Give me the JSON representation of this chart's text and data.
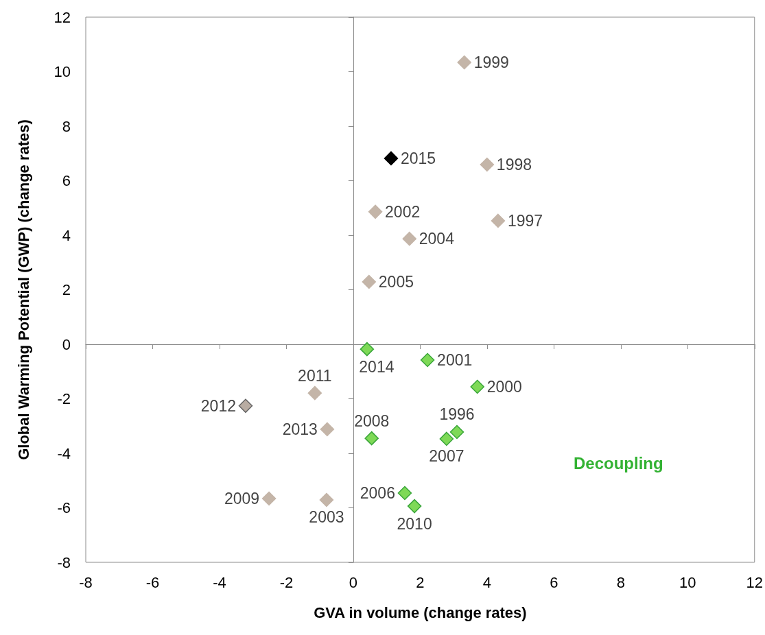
{
  "chart_data": {
    "type": "scatter",
    "xlabel": "GVA in volume (change rates)",
    "ylabel": "Global Warming Potential (GWP) (change rates)",
    "xlim": [
      -8,
      12
    ],
    "xticks": [
      -8,
      -6,
      -4,
      -2,
      0,
      2,
      4,
      6,
      8,
      10,
      12
    ],
    "ylim": [
      -8,
      12
    ],
    "yticks": [
      -8,
      -6,
      -4,
      -2,
      0,
      2,
      4,
      6,
      8,
      10,
      12
    ],
    "marker": "diamond",
    "series": [
      {
        "color": "#c4b5a8",
        "x": [
          3.32,
          4.0,
          0.66,
          4.33,
          1.68,
          0.47,
          -1.15,
          -0.78,
          -2.52,
          -0.8
        ],
        "values": [
          10.34,
          6.59,
          4.86,
          4.53,
          3.87,
          2.29,
          -1.79,
          -3.12,
          -5.66,
          -5.71
        ]
      },
      {
        "color": "#7ed957",
        "x": [
          0.41,
          2.22,
          3.71,
          0.55,
          3.1,
          2.79,
          1.54,
          1.83
        ],
        "values": [
          -0.18,
          -0.58,
          -1.56,
          -3.45,
          -3.22,
          -3.47,
          -5.46,
          -5.94
        ]
      },
      {
        "color": "#000000",
        "x": [
          1.13
        ],
        "values": [
          6.82
        ]
      },
      {
        "color": "#b8aca2",
        "x": [
          -3.22
        ],
        "values": [
          -2.26
        ]
      }
    ],
    "annotations": [
      {
        "text": "1999",
        "x": 3.32,
        "y": 10.34
      },
      {
        "text": "1998",
        "x": 4.0,
        "y": 6.59
      },
      {
        "text": "2002",
        "x": 0.66,
        "y": 4.86
      },
      {
        "text": "1997",
        "x": 4.33,
        "y": 4.53
      },
      {
        "text": "2004",
        "x": 1.68,
        "y": 3.87
      },
      {
        "text": "2005",
        "x": 0.47,
        "y": 2.29
      },
      {
        "text": "2011",
        "x": -1.15,
        "y": -1.79
      },
      {
        "text": "2013",
        "x": -0.78,
        "y": -3.12
      },
      {
        "text": "2009",
        "x": -2.52,
        "y": -5.66
      },
      {
        "text": "2003",
        "x": -0.8,
        "y": -5.71
      },
      {
        "text": "2014",
        "x": 0.41,
        "y": -0.18
      },
      {
        "text": "2001",
        "x": 2.22,
        "y": -0.58
      },
      {
        "text": "2000",
        "x": 3.71,
        "y": -1.56
      },
      {
        "text": "2008",
        "x": 0.55,
        "y": -3.45
      },
      {
        "text": "1996",
        "x": 3.1,
        "y": -3.22
      },
      {
        "text": "2007",
        "x": 2.79,
        "y": -3.47
      },
      {
        "text": "2006",
        "x": 1.54,
        "y": -5.46
      },
      {
        "text": "2010",
        "x": 1.83,
        "y": -5.94
      },
      {
        "text": "2015",
        "x": 1.13,
        "y": 6.82
      },
      {
        "text": "2012",
        "x": -3.22,
        "y": -2.26
      },
      "Decoupling"
    ]
  }
}
